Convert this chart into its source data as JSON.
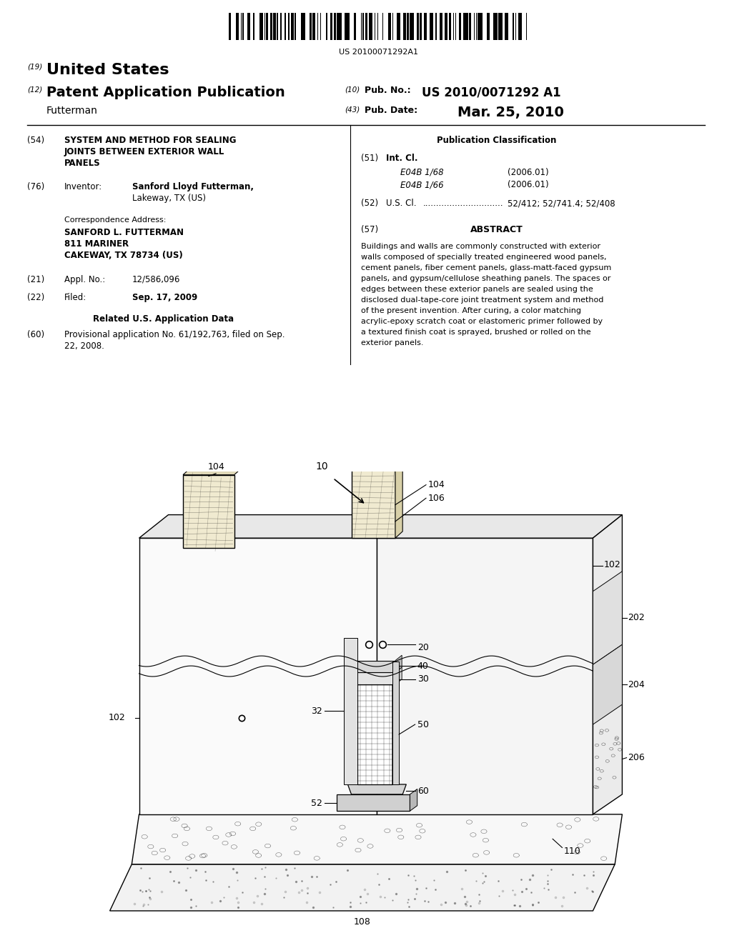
{
  "bg_color": "#ffffff",
  "barcode_text": "US 20100071292A1",
  "line19": "(19)",
  "text19": "United States",
  "line12": "(12)",
  "text12": "Patent Application Publication",
  "pub_no_label": "(10) Pub. No.:",
  "pub_no_value": "US 2010/0071292 A1",
  "pub_date_label": "(43) Pub. Date:",
  "pub_date_value": "Mar. 25, 2010",
  "inventor_name": "Futterman",
  "s54_num": "(54)",
  "s54_title_line1": "SYSTEM AND METHOD FOR SEALING",
  "s54_title_line2": "JOINTS BETWEEN EXTERIOR WALL",
  "s54_title_line3": "PANELS",
  "s76_num": "(76)",
  "s76_label": "Inventor:",
  "s76_name": "Sanford Lloyd Futterman,",
  "s76_city": "Lakeway, TX (US)",
  "corr_label": "Correspondence Address:",
  "corr_name": "SANFORD L. FUTTERMAN",
  "corr_addr1": "811 MARINER",
  "corr_addr2": "CAKEWAY, TX 78734 (US)",
  "s21_num": "(21)",
  "s21_label": "Appl. No.:",
  "s21_value": "12/586,096",
  "s22_num": "(22)",
  "s22_label": "Filed:",
  "s22_value": "Sep. 17, 2009",
  "related_header": "Related U.S. Application Data",
  "s60_num": "(60)",
  "s60_line1": "Provisional application No. 61/192,763, filed on Sep.",
  "s60_line2": "22, 2008.",
  "pub_class_header": "Publication Classification",
  "s51_num": "(51)",
  "s51_label": "Int. Cl.",
  "s51_e04b168": "E04B 1/68",
  "s51_e04b168_year": "(2006.01)",
  "s51_e04b166": "E04B 1/66",
  "s51_e04b166_year": "(2006.01)",
  "s52_num": "(52)",
  "s52_label": "U.S. Cl.",
  "s52_dots": "..............................",
  "s52_value": "52/412; 52/741.4; 52/408",
  "s57_num": "(57)",
  "s57_header": "ABSTRACT",
  "abstract_lines": [
    "Buildings and walls are commonly constructed with exterior",
    "walls composed of specially treated engineered wood panels,",
    "cement panels, fiber cement panels, glass-matt-faced gypsum",
    "panels, and gypsum/cellulose sheathing panels. The spaces or",
    "edges between these exterior panels are sealed using the",
    "disclosed dual-tape-core joint treatment system and method",
    "of the present invention. After curing, a color matching",
    "acrylic-epoxy scratch coat or elastomeric primer followed by",
    "a textured finish coat is sprayed, brushed or rolled on the",
    "exterior panels."
  ]
}
